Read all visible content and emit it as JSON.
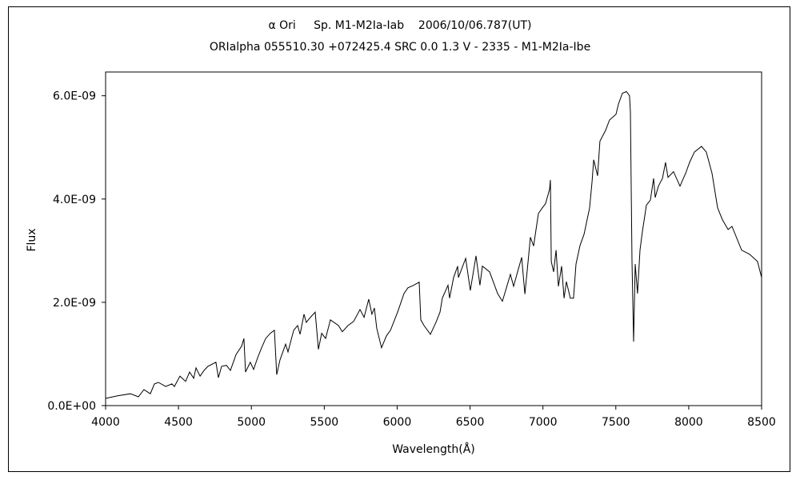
{
  "chart_data": {
    "type": "line",
    "title": "α Ori     Sp. M1-M2Ia-Iab    2006/10/06.787(UT)",
    "subtitle": "ORIalpha 055510.30 +072425.4 SRC 0.0 1.3 V - 2335 - M1-M2Ia-Ibe",
    "xlabel": "Wavelength(Å)",
    "ylabel": "Flux",
    "xlim": [
      4000,
      8500
    ],
    "ylim": [
      0,
      6.46e-09
    ],
    "xticks": [
      4000,
      4500,
      5000,
      5500,
      6000,
      6500,
      7000,
      7500,
      8000,
      8500
    ],
    "xtick_labels": [
      "4000",
      "4500",
      "5000",
      "5500",
      "6000",
      "6500",
      "7000",
      "7500",
      "8000",
      "8500"
    ],
    "yticks": [
      0,
      2e-09,
      4e-09,
      6e-09
    ],
    "ytick_labels": [
      "0.0E+00",
      "2.0E-09",
      "4.0E-09",
      "6.0E-09"
    ],
    "grid": false,
    "line_color": "#000000",
    "series": [
      {
        "x": [
          4000,
          4082,
          4170,
          4225,
          4263,
          4307,
          4335,
          4362,
          4412,
          4455,
          4472,
          4510,
          4549,
          4576,
          4604,
          4620,
          4648,
          4675,
          4702,
          4757,
          4774,
          4796,
          4829,
          4856,
          4895,
          4933,
          4949,
          4960,
          4993,
          5015,
          5043,
          5070,
          5098,
          5130,
          5158,
          5174,
          5196,
          5235,
          5251,
          5290,
          5317,
          5334,
          5361,
          5377,
          5405,
          5438,
          5460,
          5482,
          5509,
          5542,
          5597,
          5624,
          5663,
          5701,
          5745,
          5773,
          5805,
          5827,
          5844,
          5860,
          5893,
          5926,
          5954,
          6003,
          6047,
          6074,
          6113,
          6151,
          6162,
          6184,
          6228,
          6266,
          6294,
          6310,
          6349,
          6360,
          6387,
          6415,
          6420,
          6470,
          6502,
          6541,
          6568,
          6585,
          6634,
          6689,
          6722,
          6777,
          6799,
          6826,
          6854,
          6876,
          6898,
          6914,
          6936,
          6969,
          6996,
          7018,
          7046,
          7051,
          7057,
          7073,
          7090,
          7106,
          7128,
          7145,
          7161,
          7188,
          7210,
          7227,
          7254,
          7282,
          7320,
          7337,
          7348,
          7375,
          7391,
          7430,
          7457,
          7501,
          7518,
          7545,
          7573,
          7594,
          7600,
          7611,
          7622,
          7633,
          7649,
          7666,
          7682,
          7710,
          7737,
          7759,
          7770,
          7792,
          7820,
          7841,
          7858,
          7896,
          7940,
          7979,
          8006,
          8039,
          8088,
          8121,
          8160,
          8198,
          8231,
          8270,
          8297,
          8363,
          8418,
          8472,
          8500
        ],
        "y": [
          1.4e-10,
          1.9e-10,
          2.3e-10,
          1.7e-10,
          3.1e-10,
          2.3e-10,
          4.2e-10,
          4.5e-10,
          3.7e-10,
          4.2e-10,
          3.7e-10,
          5.7e-10,
          4.7e-10,
          6.5e-10,
          5.3e-10,
          7.3e-10,
          5.7e-10,
          6.8e-10,
          7.6e-10,
          8.4e-10,
          5.4e-10,
          7.6e-10,
          7.8e-10,
          6.8e-10,
          9.9e-10,
          1.15e-09,
          1.3e-09,
          6.5e-10,
          8.4e-10,
          7e-10,
          9.3e-10,
          1.12e-09,
          1.3e-09,
          1.4e-09,
          1.46e-09,
          6e-10,
          8.8e-10,
          1.19e-09,
          1.04e-09,
          1.46e-09,
          1.55e-09,
          1.38e-09,
          1.77e-09,
          1.61e-09,
          1.71e-09,
          1.81e-09,
          1.09e-09,
          1.4e-09,
          1.3e-09,
          1.66e-09,
          1.55e-09,
          1.43e-09,
          1.55e-09,
          1.63e-09,
          1.86e-09,
          1.71e-09,
          2.06e-09,
          1.77e-09,
          1.89e-09,
          1.5e-09,
          1.12e-09,
          1.35e-09,
          1.46e-09,
          1.81e-09,
          2.17e-09,
          2.28e-09,
          2.33e-09,
          2.39e-09,
          1.66e-09,
          1.55e-09,
          1.38e-09,
          1.61e-09,
          1.81e-09,
          2.08e-09,
          2.33e-09,
          2.08e-09,
          2.48e-09,
          2.7e-09,
          2.48e-09,
          2.85e-09,
          2.23e-09,
          2.9e-09,
          2.33e-09,
          2.7e-09,
          2.59e-09,
          2.17e-09,
          2.02e-09,
          2.54e-09,
          2.31e-09,
          2.59e-09,
          2.87e-09,
          2.16e-09,
          2.79e-09,
          3.26e-09,
          3.09e-09,
          3.72e-09,
          3.83e-09,
          3.91e-09,
          4.19e-09,
          4.37e-09,
          2.79e-09,
          2.59e-09,
          3.01e-09,
          2.31e-09,
          2.7e-09,
          2.08e-09,
          2.4e-09,
          2.08e-09,
          2.08e-09,
          2.74e-09,
          3.1e-09,
          3.32e-09,
          3.83e-09,
          4.34e-09,
          4.76e-09,
          4.45e-09,
          5.12e-09,
          5.33e-09,
          5.53e-09,
          5.64e-09,
          5.84e-09,
          6.05e-09,
          6.08e-09,
          6e-09,
          5.69e-09,
          2.79e-09,
          1.24e-09,
          2.74e-09,
          2.17e-09,
          3.01e-09,
          3.36e-09,
          3.88e-09,
          3.98e-09,
          4.4e-09,
          4.03e-09,
          4.25e-09,
          4.4e-09,
          4.71e-09,
          4.42e-09,
          4.53e-09,
          4.25e-09,
          4.5e-09,
          4.71e-09,
          4.91e-09,
          5.02e-09,
          4.91e-09,
          4.5e-09,
          3.83e-09,
          3.6e-09,
          3.41e-09,
          3.47e-09,
          3.01e-09,
          2.93e-09,
          2.79e-09,
          2.48e-09
        ]
      }
    ]
  }
}
